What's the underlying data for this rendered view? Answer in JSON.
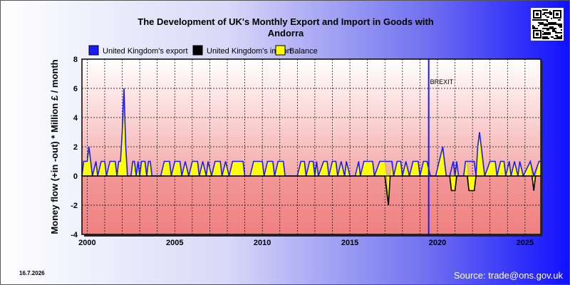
{
  "header": {
    "title_line1": "The Development of UK's Monthly Export and Import in Goods with",
    "title_line2": "Andorra"
  },
  "footer": {
    "date": "16.7.2026",
    "source": "Source: trade@ons.gov.uk"
  },
  "colors": {
    "export": "#1a1aff",
    "import": "#000000",
    "balance": "#ffff00",
    "brexit_line": "#1a1aff",
    "plot_top": "#ffffff",
    "plot_bottom": "#f08080"
  },
  "chart_data": {
    "type": "line",
    "title": "The Development of UK's Monthly Export and Import in Goods with Andorra",
    "ylabel": "Money flow (+in -out) * Million £ / month",
    "xlabel": "",
    "ylim": [
      -4,
      8
    ],
    "xlim": [
      1999.7,
      2025.9
    ],
    "yticks": [
      "8",
      "6",
      "4",
      "2",
      "0",
      "-2",
      "-4"
    ],
    "xticks": [
      "2000",
      "2005",
      "2010",
      "2015",
      "2020",
      "2025"
    ],
    "grid": true,
    "legend_position": "top",
    "annotation": {
      "label": "BREXIT",
      "x": 2019.5
    },
    "series": [
      {
        "name": "United Kingdom's export",
        "points": [
          [
            1999.7,
            0
          ],
          [
            1999.8,
            1
          ],
          [
            2000.0,
            1
          ],
          [
            2000.1,
            2
          ],
          [
            2000.2,
            1
          ],
          [
            2000.3,
            0
          ],
          [
            2000.5,
            1
          ],
          [
            2000.6,
            0
          ],
          [
            2000.8,
            1
          ],
          [
            2001.0,
            1
          ],
          [
            2001.1,
            0
          ],
          [
            2001.3,
            1
          ],
          [
            2001.6,
            1
          ],
          [
            2001.7,
            0
          ],
          [
            2001.8,
            1
          ],
          [
            2001.9,
            1
          ],
          [
            2002.0,
            3
          ],
          [
            2002.1,
            6
          ],
          [
            2002.2,
            2
          ],
          [
            2002.3,
            0
          ],
          [
            2002.5,
            0
          ],
          [
            2002.6,
            1
          ],
          [
            2002.7,
            1
          ],
          [
            2002.8,
            0
          ],
          [
            2002.9,
            1
          ],
          [
            2003.0,
            0
          ],
          [
            2003.1,
            1
          ],
          [
            2003.3,
            1
          ],
          [
            2003.4,
            0
          ],
          [
            2003.5,
            1
          ],
          [
            2003.6,
            1
          ],
          [
            2003.7,
            0
          ],
          [
            2004.2,
            0
          ],
          [
            2004.4,
            1
          ],
          [
            2004.7,
            1
          ],
          [
            2004.8,
            0
          ],
          [
            2005.0,
            1
          ],
          [
            2005.3,
            1
          ],
          [
            2005.4,
            0
          ],
          [
            2005.6,
            1
          ],
          [
            2005.8,
            0
          ],
          [
            2006.0,
            1
          ],
          [
            2006.3,
            1
          ],
          [
            2006.4,
            0
          ],
          [
            2006.6,
            1
          ],
          [
            2006.8,
            0
          ],
          [
            2006.9,
            1
          ],
          [
            2007.1,
            0
          ],
          [
            2007.3,
            1
          ],
          [
            2007.6,
            1
          ],
          [
            2007.7,
            0
          ],
          [
            2007.9,
            1
          ],
          [
            2008.1,
            0
          ],
          [
            2008.3,
            1
          ],
          [
            2008.9,
            1
          ],
          [
            2009.0,
            0
          ],
          [
            2009.3,
            0
          ],
          [
            2009.5,
            1
          ],
          [
            2010.0,
            1
          ],
          [
            2010.1,
            0
          ],
          [
            2010.3,
            1
          ],
          [
            2010.6,
            1
          ],
          [
            2010.7,
            0
          ],
          [
            2010.9,
            1
          ],
          [
            2011.2,
            1
          ],
          [
            2011.3,
            0
          ],
          [
            2012.0,
            0
          ],
          [
            2012.2,
            1
          ],
          [
            2012.4,
            1
          ],
          [
            2012.5,
            0
          ],
          [
            2012.7,
            1
          ],
          [
            2012.9,
            1
          ],
          [
            2013.0,
            0
          ],
          [
            2013.1,
            1
          ],
          [
            2013.2,
            0
          ],
          [
            2013.5,
            1
          ],
          [
            2013.7,
            1
          ],
          [
            2013.8,
            0
          ],
          [
            2014.0,
            1
          ],
          [
            2014.2,
            1
          ],
          [
            2014.3,
            0
          ],
          [
            2014.5,
            1
          ],
          [
            2014.7,
            0
          ],
          [
            2014.8,
            1
          ],
          [
            2015.0,
            0
          ],
          [
            2015.3,
            0
          ],
          [
            2015.5,
            1
          ],
          [
            2015.6,
            0
          ],
          [
            2015.8,
            1
          ],
          [
            2016.3,
            1
          ],
          [
            2016.4,
            0
          ],
          [
            2016.7,
            1
          ],
          [
            2017.4,
            1
          ],
          [
            2017.5,
            0
          ],
          [
            2017.7,
            1
          ],
          [
            2017.9,
            1
          ],
          [
            2018.0,
            0
          ],
          [
            2018.2,
            1
          ],
          [
            2018.4,
            0
          ],
          [
            2018.6,
            1
          ],
          [
            2018.9,
            1
          ],
          [
            2019.0,
            0
          ],
          [
            2019.2,
            1
          ],
          [
            2019.4,
            1
          ],
          [
            2019.6,
            0
          ],
          [
            2019.9,
            0
          ],
          [
            2020.1,
            1
          ],
          [
            2020.3,
            2
          ],
          [
            2020.4,
            1
          ],
          [
            2020.5,
            0
          ],
          [
            2020.7,
            0
          ],
          [
            2020.9,
            1
          ],
          [
            2021.0,
            0
          ],
          [
            2021.1,
            1
          ],
          [
            2021.2,
            0
          ],
          [
            2021.5,
            0
          ],
          [
            2021.6,
            1
          ],
          [
            2022.1,
            1
          ],
          [
            2022.2,
            0
          ],
          [
            2022.3,
            2
          ],
          [
            2022.4,
            3
          ],
          [
            2022.6,
            1
          ],
          [
            2022.7,
            0
          ],
          [
            2023.0,
            1
          ],
          [
            2023.3,
            1
          ],
          [
            2023.4,
            0
          ],
          [
            2023.6,
            1
          ],
          [
            2023.8,
            1
          ],
          [
            2023.9,
            0
          ],
          [
            2024.1,
            1
          ],
          [
            2024.2,
            0
          ],
          [
            2024.4,
            1
          ],
          [
            2024.6,
            0
          ],
          [
            2024.7,
            1
          ],
          [
            2024.9,
            0
          ],
          [
            2025.3,
            1
          ],
          [
            2025.5,
            0
          ],
          [
            2025.8,
            1
          ],
          [
            2025.9,
            1
          ]
        ]
      },
      {
        "name": "United Kingdom's import",
        "points": [
          [
            1999.7,
            0
          ],
          [
            2017.0,
            0
          ],
          [
            2017.1,
            -1
          ],
          [
            2017.2,
            -2
          ],
          [
            2017.3,
            0
          ],
          [
            2020.7,
            0
          ],
          [
            2020.8,
            -1
          ],
          [
            2021.0,
            -1
          ],
          [
            2021.1,
            0
          ],
          [
            2021.7,
            0
          ],
          [
            2021.8,
            -1
          ],
          [
            2022.1,
            -1
          ],
          [
            2022.2,
            0
          ],
          [
            2025.4,
            0
          ],
          [
            2025.5,
            -1
          ],
          [
            2025.6,
            0
          ],
          [
            2025.9,
            0
          ]
        ]
      },
      {
        "name": "Balance",
        "points": [
          [
            1999.7,
            0
          ],
          [
            1999.8,
            1
          ],
          [
            2000.0,
            1
          ],
          [
            2000.1,
            2
          ],
          [
            2000.2,
            1
          ],
          [
            2000.3,
            0
          ],
          [
            2000.5,
            1
          ],
          [
            2000.6,
            0
          ],
          [
            2000.8,
            1
          ],
          [
            2001.0,
            1
          ],
          [
            2001.1,
            0
          ],
          [
            2001.3,
            1
          ],
          [
            2001.6,
            1
          ],
          [
            2001.7,
            0
          ],
          [
            2001.8,
            1
          ],
          [
            2001.9,
            1
          ],
          [
            2002.0,
            3
          ],
          [
            2002.1,
            6
          ],
          [
            2002.2,
            2
          ],
          [
            2002.3,
            0
          ],
          [
            2002.5,
            0
          ],
          [
            2002.6,
            1
          ],
          [
            2002.7,
            1
          ],
          [
            2002.8,
            0
          ],
          [
            2002.9,
            1
          ],
          [
            2003.0,
            0
          ],
          [
            2003.1,
            1
          ],
          [
            2003.3,
            1
          ],
          [
            2003.4,
            0
          ],
          [
            2003.5,
            1
          ],
          [
            2003.6,
            1
          ],
          [
            2003.7,
            0
          ],
          [
            2004.2,
            0
          ],
          [
            2004.4,
            1
          ],
          [
            2004.7,
            1
          ],
          [
            2004.8,
            0
          ],
          [
            2005.0,
            1
          ],
          [
            2005.3,
            1
          ],
          [
            2005.4,
            0
          ],
          [
            2005.6,
            1
          ],
          [
            2005.8,
            0
          ],
          [
            2006.0,
            1
          ],
          [
            2006.3,
            1
          ],
          [
            2006.4,
            0
          ],
          [
            2006.6,
            1
          ],
          [
            2006.8,
            0
          ],
          [
            2006.9,
            1
          ],
          [
            2007.1,
            0
          ],
          [
            2007.3,
            1
          ],
          [
            2007.6,
            1
          ],
          [
            2007.7,
            0
          ],
          [
            2007.9,
            1
          ],
          [
            2008.1,
            0
          ],
          [
            2008.3,
            1
          ],
          [
            2008.9,
            1
          ],
          [
            2009.0,
            0
          ],
          [
            2009.3,
            0
          ],
          [
            2009.5,
            1
          ],
          [
            2010.0,
            1
          ],
          [
            2010.1,
            0
          ],
          [
            2010.3,
            1
          ],
          [
            2010.6,
            1
          ],
          [
            2010.7,
            0
          ],
          [
            2010.9,
            1
          ],
          [
            2011.2,
            1
          ],
          [
            2011.3,
            0
          ],
          [
            2012.0,
            0
          ],
          [
            2012.2,
            1
          ],
          [
            2012.4,
            1
          ],
          [
            2012.5,
            0
          ],
          [
            2012.7,
            1
          ],
          [
            2012.9,
            1
          ],
          [
            2013.0,
            0
          ],
          [
            2013.1,
            1
          ],
          [
            2013.2,
            0
          ],
          [
            2013.5,
            1
          ],
          [
            2013.7,
            1
          ],
          [
            2013.8,
            0
          ],
          [
            2014.0,
            1
          ],
          [
            2014.2,
            1
          ],
          [
            2014.3,
            0
          ],
          [
            2014.5,
            1
          ],
          [
            2014.7,
            0
          ],
          [
            2014.8,
            1
          ],
          [
            2015.0,
            0
          ],
          [
            2015.3,
            0
          ],
          [
            2015.5,
            1
          ],
          [
            2015.6,
            0
          ],
          [
            2015.8,
            1
          ],
          [
            2016.3,
            1
          ],
          [
            2016.4,
            0
          ],
          [
            2016.7,
            1
          ],
          [
            2017.0,
            1
          ],
          [
            2017.1,
            0
          ],
          [
            2017.2,
            -2
          ],
          [
            2017.3,
            0
          ],
          [
            2017.4,
            1
          ],
          [
            2017.5,
            0
          ],
          [
            2017.7,
            1
          ],
          [
            2017.9,
            1
          ],
          [
            2018.0,
            0
          ],
          [
            2018.2,
            1
          ],
          [
            2018.4,
            0
          ],
          [
            2018.6,
            1
          ],
          [
            2018.9,
            1
          ],
          [
            2019.0,
            0
          ],
          [
            2019.2,
            1
          ],
          [
            2019.4,
            1
          ],
          [
            2019.6,
            0
          ],
          [
            2019.9,
            0
          ],
          [
            2020.1,
            1
          ],
          [
            2020.3,
            2
          ],
          [
            2020.4,
            1
          ],
          [
            2020.5,
            0
          ],
          [
            2020.7,
            0
          ],
          [
            2020.8,
            -1
          ],
          [
            2021.0,
            -1
          ],
          [
            2021.1,
            1
          ],
          [
            2021.2,
            0
          ],
          [
            2021.5,
            0
          ],
          [
            2021.6,
            1
          ],
          [
            2021.7,
            1
          ],
          [
            2021.8,
            -1
          ],
          [
            2022.1,
            -1
          ],
          [
            2022.2,
            0
          ],
          [
            2022.3,
            2
          ],
          [
            2022.4,
            3
          ],
          [
            2022.6,
            1
          ],
          [
            2022.7,
            0
          ],
          [
            2023.0,
            1
          ],
          [
            2023.3,
            1
          ],
          [
            2023.4,
            0
          ],
          [
            2023.6,
            1
          ],
          [
            2023.8,
            1
          ],
          [
            2023.9,
            0
          ],
          [
            2024.1,
            1
          ],
          [
            2024.2,
            0
          ],
          [
            2024.4,
            1
          ],
          [
            2024.6,
            0
          ],
          [
            2024.7,
            1
          ],
          [
            2024.9,
            0
          ],
          [
            2025.3,
            1
          ],
          [
            2025.4,
            0
          ],
          [
            2025.5,
            -1
          ],
          [
            2025.6,
            0
          ],
          [
            2025.8,
            1
          ],
          [
            2025.9,
            1
          ]
        ]
      }
    ]
  }
}
